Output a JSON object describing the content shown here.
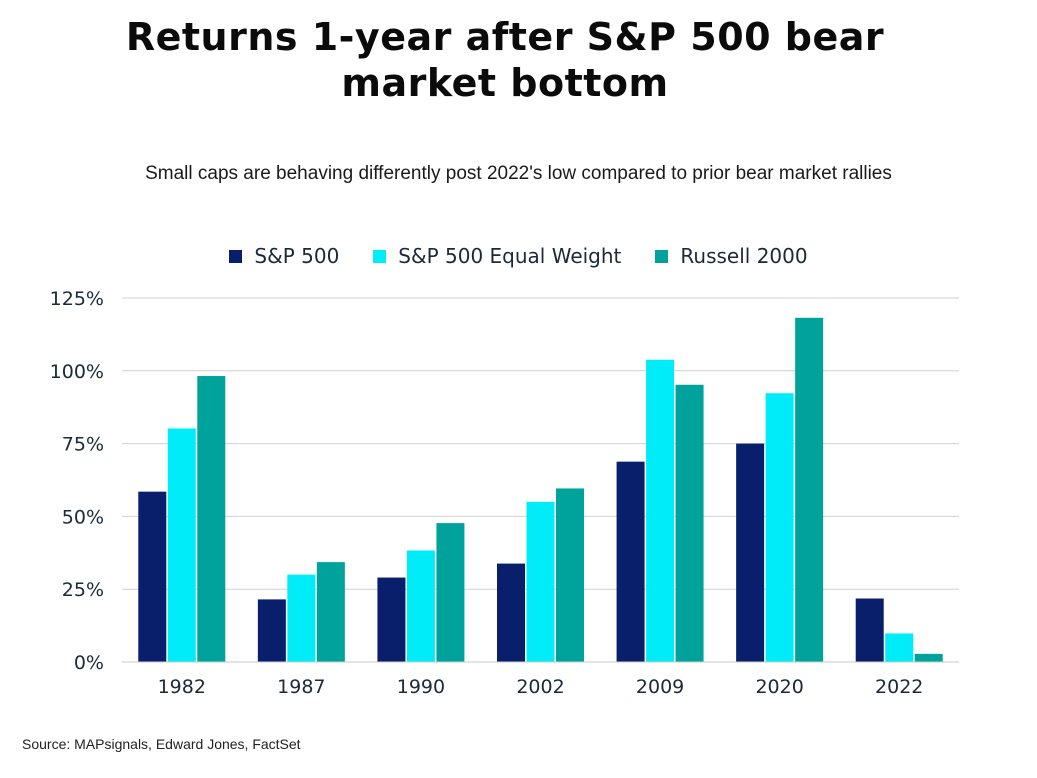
{
  "chart_data": {
    "type": "bar",
    "title": "Returns 1-year after S&P 500 bear\nmarket bottom",
    "subtitle": "Small caps are behaving differently post 2022's low compared to prior bear market rallies",
    "categories": [
      "1982",
      "1987",
      "1990",
      "2002",
      "2009",
      "2020",
      "2022"
    ],
    "series": [
      {
        "name": "S&P 500",
        "color": "#0a1f6b",
        "values": [
          58.5,
          21.5,
          29,
          33.8,
          68.8,
          75,
          21.8
        ]
      },
      {
        "name": "S&P 500 Equal Weight",
        "color": "#00ecf8",
        "values": [
          80.2,
          30,
          38.3,
          55,
          103.8,
          92.3,
          9.8
        ]
      },
      {
        "name": "Russell 2000",
        "color": "#00a39b",
        "values": [
          98.2,
          34.3,
          47.7,
          59.6,
          95.2,
          118.2,
          2.8
        ]
      }
    ],
    "ylim": [
      0,
      125
    ],
    "yticks": [
      0,
      25,
      50,
      75,
      100,
      125
    ],
    "ytick_labels": [
      "0%",
      "25%",
      "50%",
      "75%",
      "100%",
      "125%"
    ],
    "grid": true,
    "legend_position": "top-center",
    "source": "Source: MAPsignals, Edward Jones, FactSet"
  }
}
